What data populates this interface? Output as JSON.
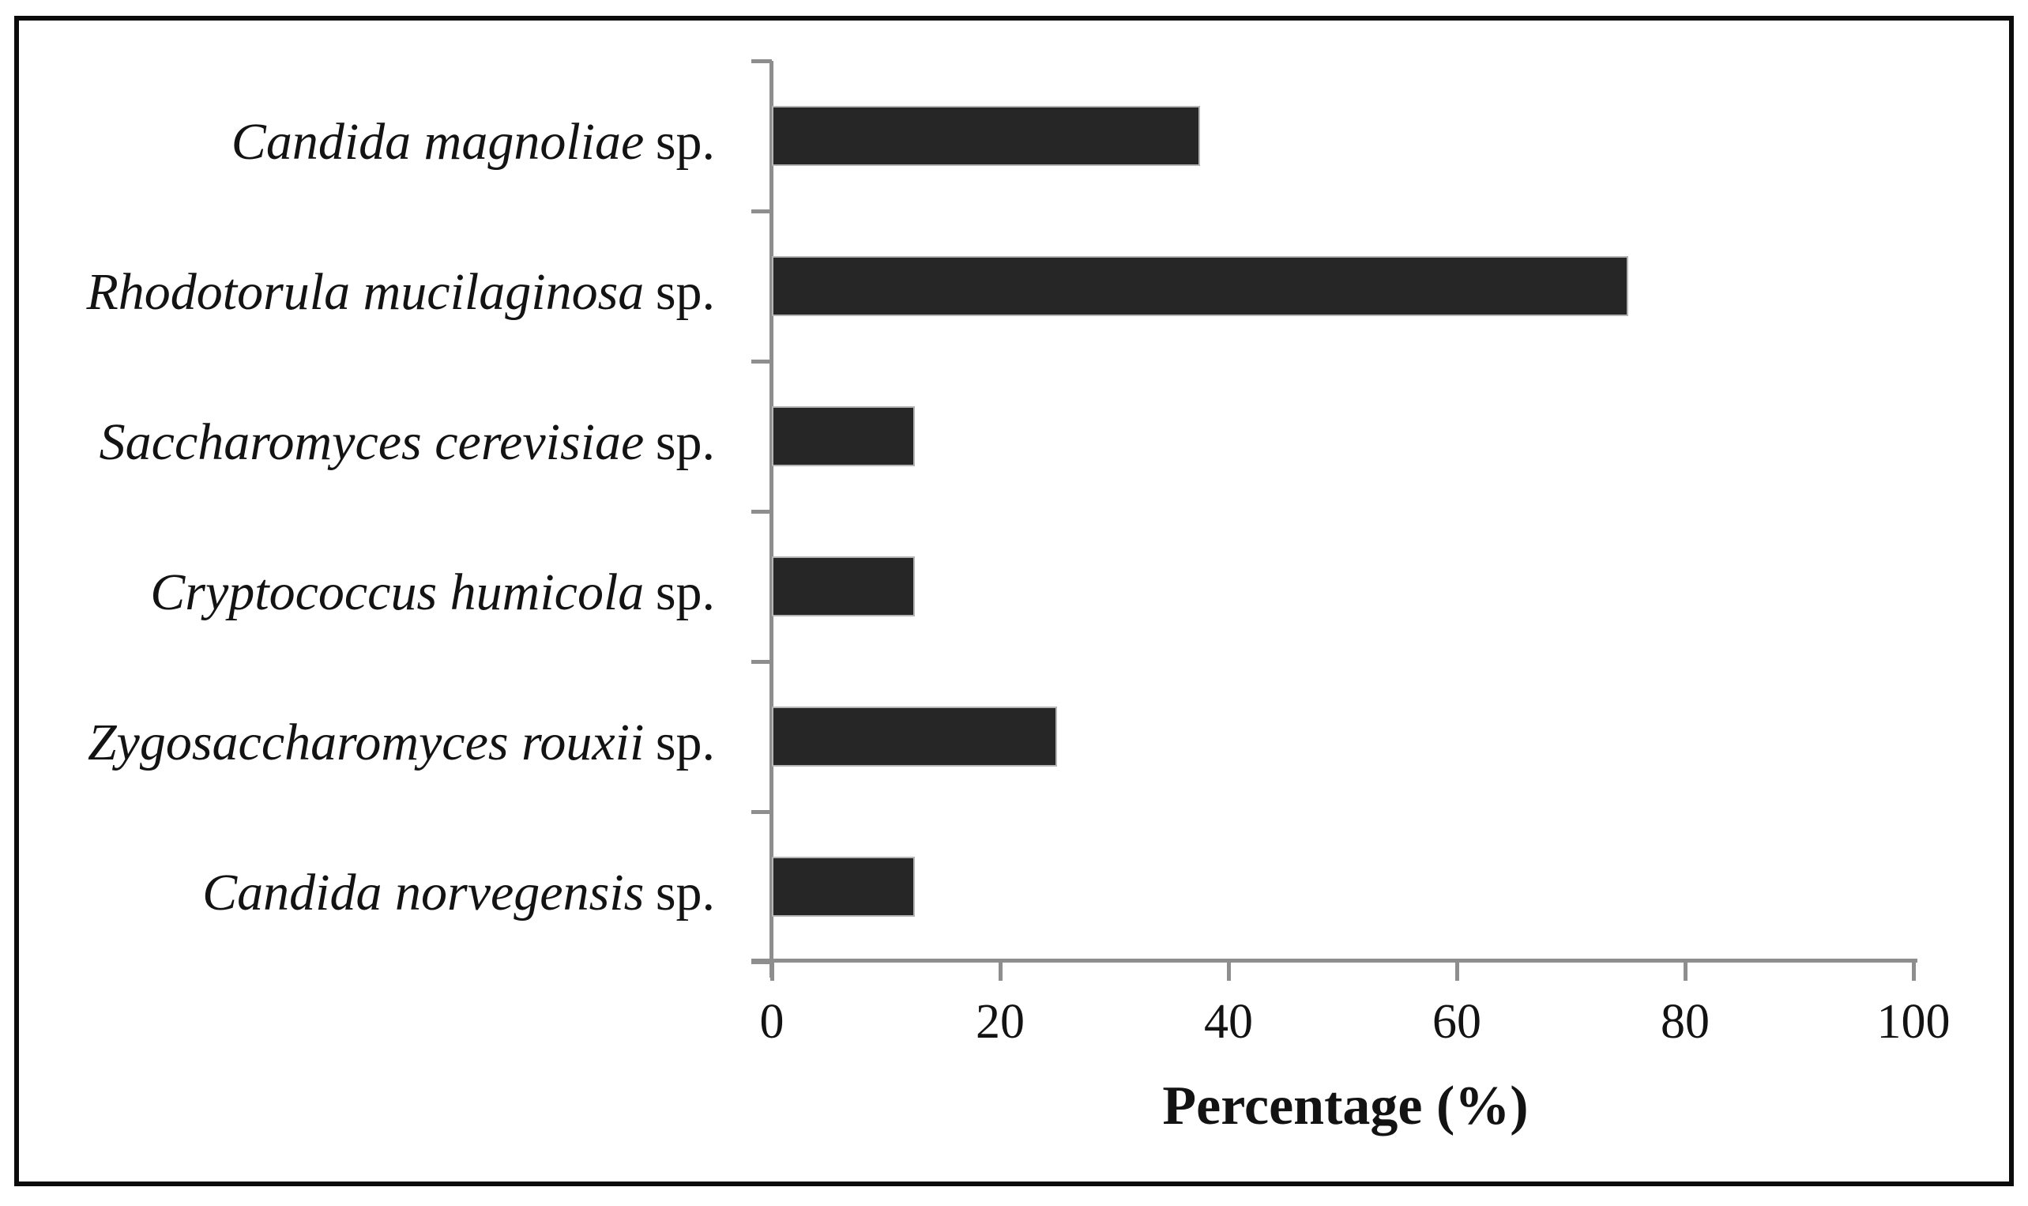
{
  "figure": {
    "background": "#ffffff",
    "frame_border_color": "#0b0b0b"
  },
  "chart_data": {
    "type": "bar",
    "orientation": "horizontal",
    "title": "",
    "xlabel": "Percentage (%)",
    "ylabel": "",
    "categories": [
      {
        "species": "Candida magnoliae",
        "suffix": "sp."
      },
      {
        "species": "Rhodotorula mucilaginosa",
        "suffix": "sp."
      },
      {
        "species": "Saccharomyces cerevisiae",
        "suffix": "sp."
      },
      {
        "species": "Cryptococcus humicola",
        "suffix": "sp."
      },
      {
        "species": "Zygosaccharomyces rouxii",
        "suffix": "sp."
      },
      {
        "species": "Candida norvegensis",
        "suffix": "sp."
      }
    ],
    "values": [
      37.5,
      75,
      12.5,
      12.5,
      25,
      12.5
    ],
    "x_ticks": [
      0,
      20,
      40,
      60,
      80,
      100
    ],
    "xlim": [
      0,
      100
    ],
    "grid": false,
    "legend": "none",
    "bar_color": "#262626",
    "bar_border_color": "#b5b5b5",
    "axis_color": "#8e8e8e",
    "text_color": "#131313"
  }
}
